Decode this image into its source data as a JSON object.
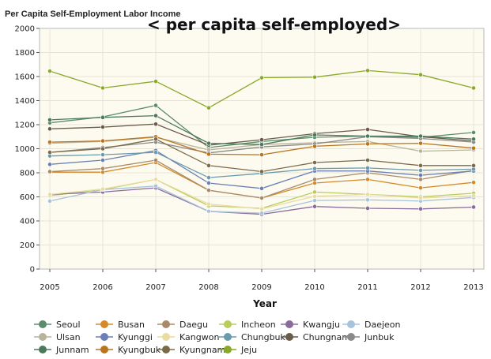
{
  "chart_data": {
    "type": "line",
    "title": "Per Capita Self-Employment Labor Income",
    "overlay_title": "< per capita self-employed>",
    "xlabel": "Year",
    "ylabel": "",
    "x": [
      "2005",
      "2006",
      "2007",
      "2008",
      "2009",
      "2010",
      "2011",
      "2012",
      "2013"
    ],
    "ylim": [
      0,
      2000
    ],
    "yticks": [
      0,
      200,
      400,
      600,
      800,
      1000,
      1200,
      1400,
      1600,
      1800,
      2000
    ],
    "grid": true,
    "legend_position": "bottom",
    "background": "#fdfbf0",
    "series": [
      {
        "name": "Seoul",
        "color": "#5b8c6b",
        "values": [
          1215,
          1265,
          1360,
          1010,
          1060,
          1095,
          1105,
          1095,
          1135
        ]
      },
      {
        "name": "Busan",
        "color": "#d48a2a",
        "values": [
          805,
          805,
          885,
          655,
          590,
          715,
          745,
          675,
          720
        ]
      },
      {
        "name": "Daegu",
        "color": "#a88a6a",
        "values": [
          810,
          835,
          905,
          655,
          590,
          745,
          800,
          745,
          820
        ]
      },
      {
        "name": "Incheon",
        "color": "#b9cc5c",
        "values": [
          610,
          660,
          745,
          525,
          505,
          640,
          620,
          600,
          630
        ]
      },
      {
        "name": "Kwangju",
        "color": "#8a6a9a",
        "values": [
          620,
          640,
          675,
          480,
          455,
          520,
          505,
          500,
          515
        ]
      },
      {
        "name": "Daejeon",
        "color": "#a8c4dc",
        "values": [
          565,
          660,
          690,
          480,
          465,
          570,
          575,
          565,
          595
        ]
      },
      {
        "name": "Ulsan",
        "color": "#b8b49a",
        "values": [
          1045,
          1060,
          1095,
          990,
          1035,
          1050,
          1060,
          980,
          990
        ]
      },
      {
        "name": "Kyunggi",
        "color": "#6a7fb4",
        "values": [
          870,
          905,
          985,
          715,
          670,
          815,
          815,
          780,
          815
        ]
      },
      {
        "name": "Kangwon",
        "color": "#e8dca0",
        "values": [
          620,
          665,
          745,
          540,
          500,
          605,
          620,
          590,
          610
        ]
      },
      {
        "name": "Chungbuk",
        "color": "#6a9aac",
        "values": [
          940,
          950,
          970,
          760,
          795,
          835,
          840,
          820,
          830
        ]
      },
      {
        "name": "Chungnam",
        "color": "#6a5a4a",
        "values": [
          1165,
          1180,
          1205,
          1030,
          1075,
          1125,
          1160,
          1100,
          1065
        ]
      },
      {
        "name": "Junbuk",
        "color": "#8a8a8a",
        "values": [
          970,
          1010,
          1055,
          965,
          1015,
          1040,
          1100,
          1085,
          1055
        ]
      },
      {
        "name": "Junnam",
        "color": "#4a7a5a",
        "values": [
          1240,
          1260,
          1275,
          1045,
          1035,
          1115,
          1105,
          1105,
          1080
        ]
      },
      {
        "name": "Kyungbuk",
        "color": "#b8741e",
        "values": [
          1055,
          1065,
          1100,
          955,
          950,
          1020,
          1040,
          1045,
          1005
        ]
      },
      {
        "name": "Kyungnam",
        "color": "#7a6a4a",
        "values": [
          970,
          1000,
          1080,
          860,
          810,
          885,
          905,
          860,
          860
        ]
      },
      {
        "name": "Jeju",
        "color": "#8aa82a",
        "values": [
          1645,
          1505,
          1560,
          1340,
          1590,
          1595,
          1650,
          1615,
          1505
        ]
      }
    ]
  }
}
